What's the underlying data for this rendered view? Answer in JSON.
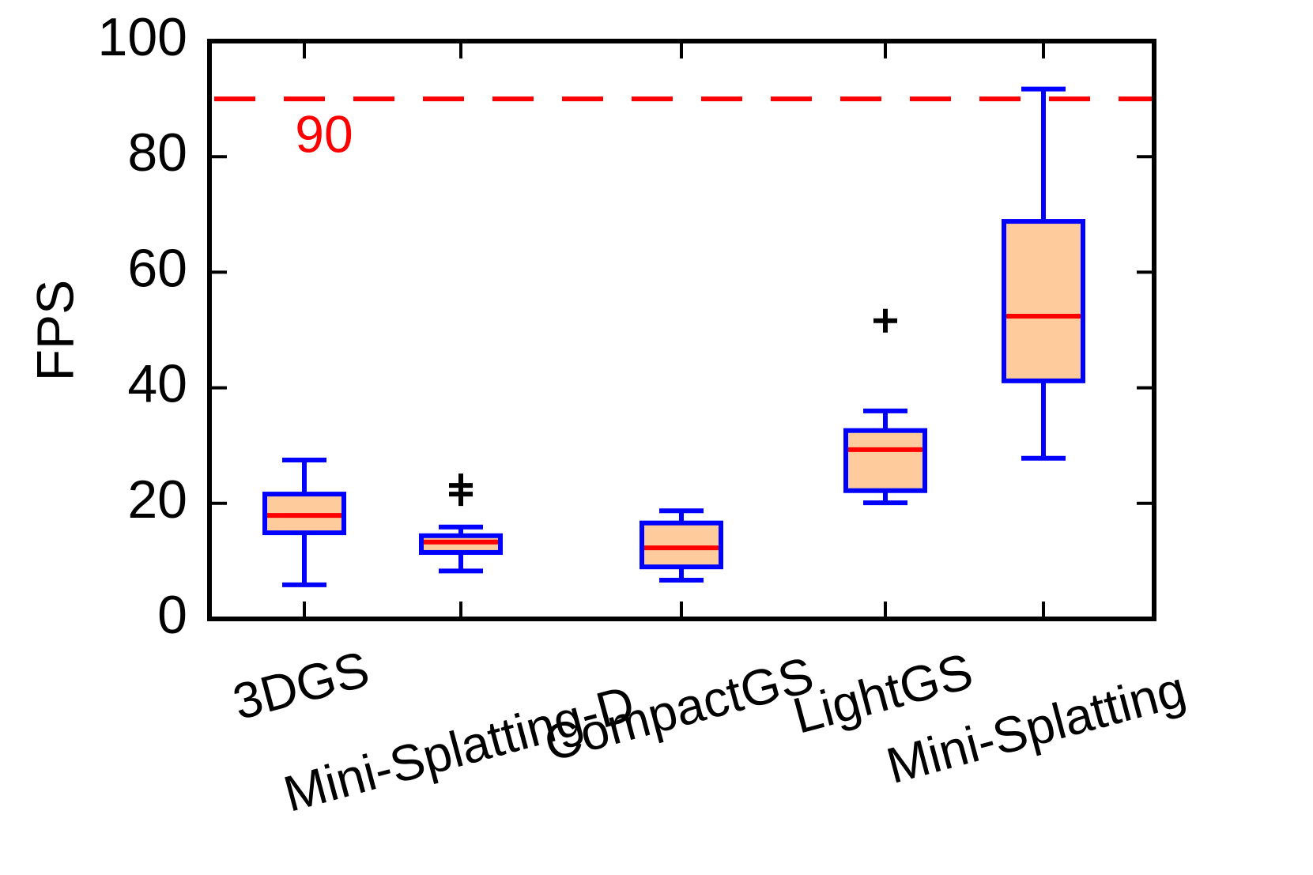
{
  "chart_data": {
    "type": "box",
    "ylabel": "FPS",
    "categories": [
      "3DGS",
      "Mini-Splatting-D",
      "CompactGS",
      "LightGS",
      "Mini-Splatting"
    ],
    "boxes": [
      {
        "whislo": 5.9,
        "q1": 14.9,
        "med": 17.9,
        "q3": 21.6,
        "whishi": 27.5,
        "fliers": []
      },
      {
        "whislo": 8.3,
        "q1": 11.5,
        "med": 13.3,
        "q3": 14.4,
        "whishi": 15.9,
        "fliers": [
          21.6,
          23.1
        ]
      },
      {
        "whislo": 6.7,
        "q1": 9.0,
        "med": 12.3,
        "q3": 16.6,
        "whishi": 18.7,
        "fliers": []
      },
      {
        "whislo": 20.1,
        "q1": 22.2,
        "med": 29.3,
        "q3": 32.6,
        "whishi": 36.0,
        "fliers": [
          51.6
        ]
      },
      {
        "whislo": 27.8,
        "q1": 41.2,
        "med": 52.4,
        "q3": 68.8,
        "whishi": 91.7,
        "fliers": []
      }
    ],
    "box_fill": "#fdcb9c",
    "box_edge": "#0000ff",
    "median_color": "#ff0000",
    "flier_color": "#000000",
    "reference_line": {
      "value": 90,
      "color": "#ff0000"
    },
    "ylim": [
      0,
      100
    ],
    "yticks": [
      0,
      20,
      40,
      60,
      80,
      100
    ]
  }
}
